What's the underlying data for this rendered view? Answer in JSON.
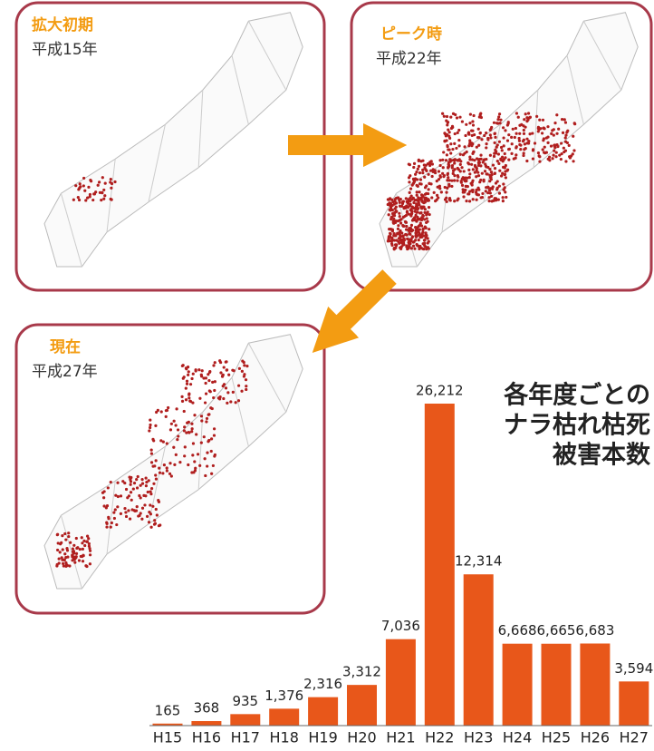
{
  "panels": [
    {
      "title": "拡大初期",
      "subtitle": "平成15年"
    },
    {
      "title": "ピーク時",
      "subtitle": "平成22年"
    },
    {
      "title": "現在",
      "subtitle": "平成27年"
    }
  ],
  "chart_data": {
    "type": "bar",
    "title_lines": [
      "各年度ごとの",
      "ナラ枯れ枯死",
      "被害本数"
    ],
    "categories": [
      "H15",
      "H16",
      "H17",
      "H18",
      "H19",
      "H20",
      "H21",
      "H22",
      "H23",
      "H24",
      "H25",
      "H26",
      "H27"
    ],
    "values": [
      165,
      368,
      935,
      1376,
      2316,
      3312,
      7036,
      26212,
      12314,
      6668,
      6665,
      6683,
      3594
    ],
    "value_labels": [
      "165",
      "368",
      "935",
      "1,376",
      "2,316",
      "3,312",
      "7,036",
      "26,212",
      "12,314",
      "6,668",
      "6,665",
      "6,683",
      "3,594"
    ],
    "color": "#e8571a"
  }
}
